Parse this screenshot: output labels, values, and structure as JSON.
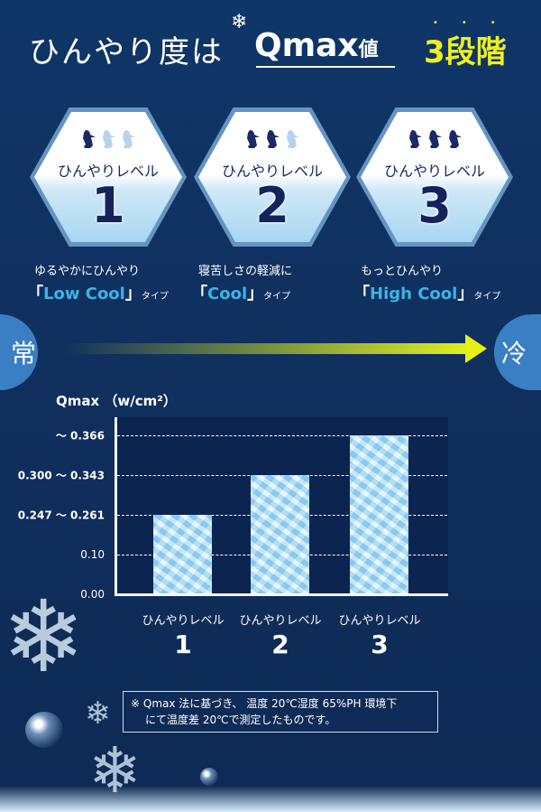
{
  "header": {
    "title_part1": "ひんやり度は",
    "title_qmax": "Qmax",
    "title_value": "値",
    "title_levels": "3段階"
  },
  "levels": [
    {
      "label": "ひんやりレベル",
      "number": "1",
      "dark_penguins": 1,
      "description": "ゆるやかにひんやり",
      "type_open": "「",
      "type_name": "Low Cool",
      "type_close": "」",
      "type_suffix": "タイプ"
    },
    {
      "label": "ひんやりレベル",
      "number": "2",
      "dark_penguins": 2,
      "description": "寝苦しさの軽減に",
      "type_open": "「",
      "type_name": "Cool",
      "type_close": "」",
      "type_suffix": "タイプ"
    },
    {
      "label": "ひんやりレベル",
      "number": "3",
      "dark_penguins": 3,
      "description": "もっとひんやり",
      "type_open": "「",
      "type_name": "High Cool",
      "type_close": "」",
      "type_suffix": "タイプ"
    }
  ],
  "scale": {
    "left_label": "常",
    "right_label": "冷"
  },
  "colors": {
    "accent_yellow": "#f0f020",
    "type_blue": "#3ab4e6",
    "circle_blue": "#3a7fc4",
    "penguin_dark": "#1b2a66",
    "penguin_light": "#b9d2ea"
  },
  "chart_data": {
    "type": "bar",
    "ylabel": "Qmax",
    "yunit": "（w/cm²）",
    "yticks": [
      "0.00",
      "0.10",
      "0.247 〜 0.261",
      "0.300 〜 0.343",
      "〜 0.366"
    ],
    "grid": true,
    "categories": [
      {
        "label": "ひんやりレベル",
        "number": "1"
      },
      {
        "label": "ひんやりレベル",
        "number": "2"
      },
      {
        "label": "ひんやりレベル",
        "number": "3"
      }
    ],
    "values": [
      "0.247 〜 0.261",
      "0.300 〜 0.343",
      "〜 0.366"
    ]
  },
  "note": {
    "line1": "※ Qmax 法に基づき、 温度 20℃湿度 65%PH 環境下",
    "line2": "にて温度差 20℃で測定したものです。"
  }
}
